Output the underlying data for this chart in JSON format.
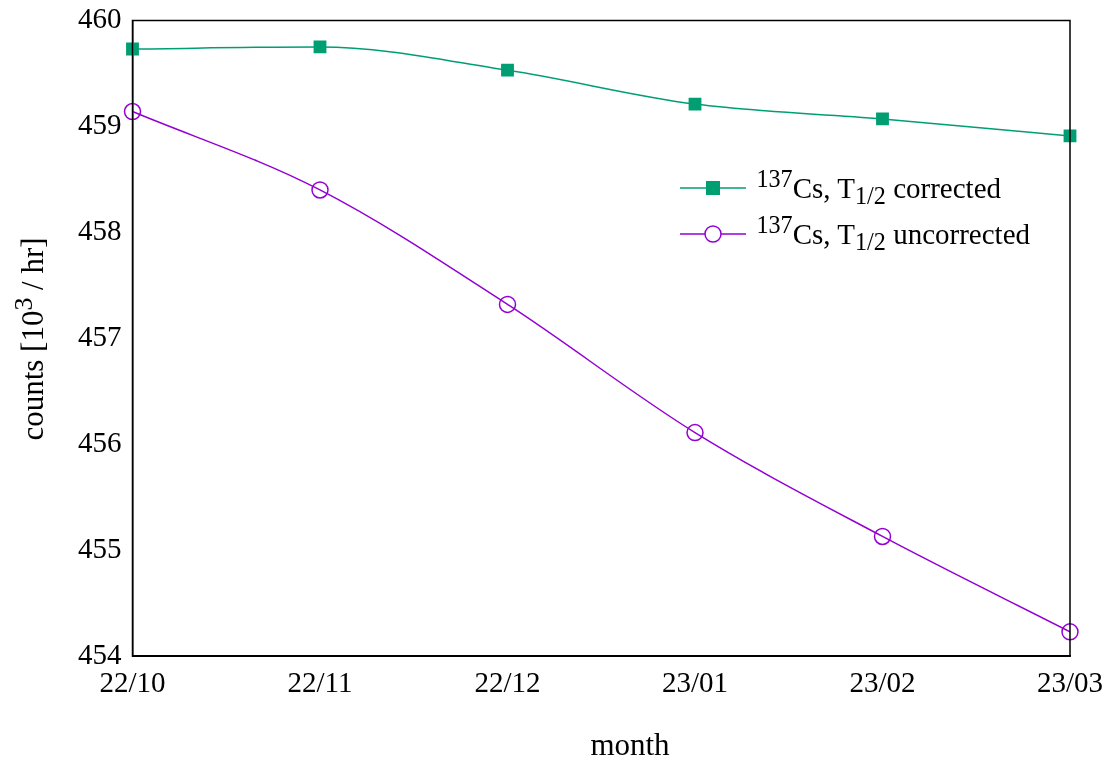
{
  "chart_data": {
    "type": "line",
    "xlabel": "month",
    "ylabel": "counts [10$^{3}$ / hr]",
    "categories": [
      "22/10",
      "22/11",
      "22/12",
      "23/01",
      "23/02",
      "23/03"
    ],
    "series": [
      {
        "name": "$^{137}$Cs, T$_{1/2}$ corrected",
        "color": "#009e73",
        "marker": "square",
        "values": [
          459.73,
          459.75,
          459.53,
          459.21,
          459.07,
          458.91
        ]
      },
      {
        "name": "$^{137}$Cs, T$_{1/2}$ uncorrected",
        "color": "#9400d3",
        "marker": "circle",
        "values": [
          459.14,
          458.4,
          457.32,
          456.11,
          455.13,
          454.23
        ]
      }
    ],
    "ylim": [
      454,
      460
    ],
    "yticks": [
      454,
      455,
      456,
      457,
      458,
      459,
      460
    ],
    "grid": false,
    "legend": "top right",
    "line_style": "solid"
  }
}
